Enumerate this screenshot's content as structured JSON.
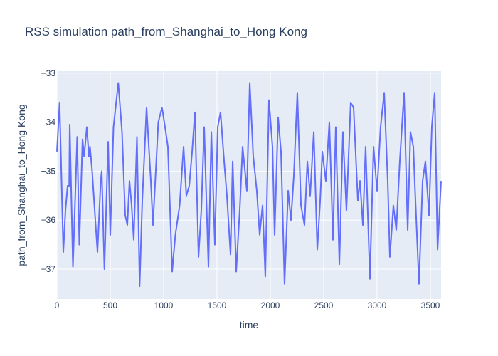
{
  "chart_data": {
    "type": "line",
    "title": "RSS simulation path_from_Shanghai_to_Hong Kong",
    "x_label": "time",
    "y_label": "path_from_Shanghai_to_Hong Kong",
    "x": [
      0,
      25,
      60,
      80,
      100,
      115,
      120,
      150,
      190,
      210,
      240,
      255,
      280,
      300,
      310,
      330,
      360,
      380,
      410,
      420,
      445,
      480,
      500,
      530,
      575,
      610,
      640,
      660,
      680,
      700,
      720,
      750,
      775,
      800,
      840,
      880,
      900,
      950,
      985,
      1020,
      1040,
      1080,
      1110,
      1150,
      1187,
      1213,
      1240,
      1267,
      1293,
      1327,
      1353,
      1380,
      1420,
      1447,
      1480,
      1507,
      1533,
      1567,
      1593,
      1627,
      1647,
      1680,
      1713,
      1740,
      1780,
      1807,
      1840,
      1873,
      1900,
      1927,
      1953,
      1987,
      2020,
      2040,
      2073,
      2100,
      2133,
      2167,
      2193,
      2220,
      2253,
      2287,
      2320,
      2347,
      2373,
      2407,
      2440,
      2467,
      2487,
      2520,
      2553,
      2587,
      2613,
      2647,
      2680,
      2713,
      2753,
      2780,
      2820,
      2840,
      2867,
      2893,
      2933,
      2967,
      3000,
      3033,
      3067,
      3100,
      3120,
      3153,
      3180,
      3213,
      3253,
      3287,
      3313,
      3340,
      3360,
      3393,
      3427,
      3453,
      3487,
      3513,
      3540,
      3567,
      3600
    ],
    "series": [
      {
        "name": "path_from_Shanghai_to_Hong Kong",
        "color": "#636efa",
        "values": [
          -34.6,
          -33.6,
          -36.65,
          -35.8,
          -35.3,
          -35.3,
          -34.05,
          -36.95,
          -34.3,
          -36.5,
          -34.35,
          -34.7,
          -34.1,
          -34.7,
          -34.5,
          -35.0,
          -36.0,
          -36.65,
          -35.2,
          -35.0,
          -37.0,
          -34.4,
          -36.3,
          -34.1,
          -33.2,
          -34.2,
          -35.9,
          -36.1,
          -35.2,
          -35.7,
          -36.4,
          -34.3,
          -37.35,
          -35.6,
          -33.7,
          -35.2,
          -36.1,
          -34.0,
          -33.7,
          -34.2,
          -34.5,
          -37.05,
          -36.3,
          -35.7,
          -34.5,
          -35.5,
          -35.3,
          -34.6,
          -33.8,
          -36.75,
          -35.8,
          -34.1,
          -36.95,
          -34.2,
          -36.5,
          -34.1,
          -33.8,
          -34.8,
          -35.5,
          -36.7,
          -34.8,
          -37.05,
          -35.8,
          -34.5,
          -35.4,
          -33.2,
          -34.7,
          -35.4,
          -36.3,
          -35.7,
          -37.15,
          -33.55,
          -34.5,
          -36.3,
          -33.9,
          -34.6,
          -37.3,
          -35.4,
          -36.0,
          -35.1,
          -33.4,
          -35.7,
          -36.1,
          -34.8,
          -35.5,
          -34.2,
          -36.6,
          -35.6,
          -34.6,
          -35.2,
          -34.0,
          -36.4,
          -34.1,
          -36.9,
          -34.2,
          -35.8,
          -33.6,
          -33.7,
          -35.6,
          -35.2,
          -36.1,
          -34.5,
          -37.2,
          -34.5,
          -35.4,
          -34.1,
          -33.4,
          -35.2,
          -36.75,
          -35.7,
          -36.2,
          -34.8,
          -33.4,
          -36.2,
          -34.2,
          -34.5,
          -35.6,
          -37.3,
          -35.2,
          -34.8,
          -35.9,
          -34.1,
          -33.4,
          -36.6,
          -35.2
        ]
      }
    ],
    "xlim": [
      0,
      3600
    ],
    "xticks": [
      0,
      500,
      1000,
      1500,
      2000,
      2500,
      3000,
      3500
    ],
    "ylim": [
      -37.61,
      -32.96
    ],
    "yticks": [
      {
        "value": -37,
        "label": "−37"
      },
      {
        "value": -36,
        "label": "−36"
      },
      {
        "value": -35,
        "label": "−35"
      },
      {
        "value": -34,
        "label": "−34"
      },
      {
        "value": -33,
        "label": "−33"
      }
    ],
    "grid": true,
    "background": "#e5ecf6"
  }
}
